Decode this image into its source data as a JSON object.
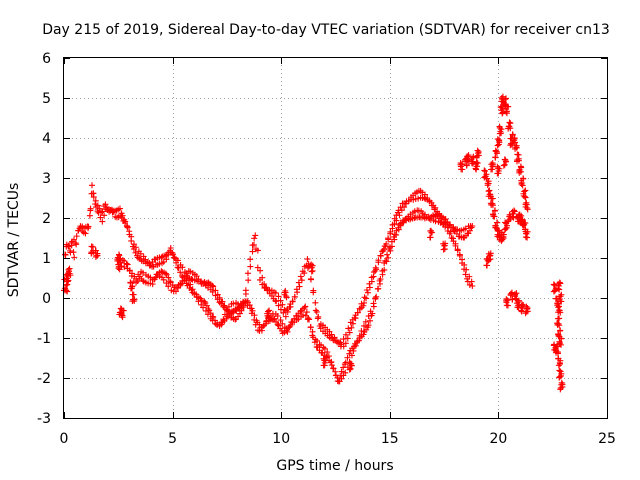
{
  "chart_data": {
    "type": "scatter",
    "title": "Day 215 of 2019, Sidereal Day-to-day VTEC variation (SDTVAR) for receiver cn13",
    "xlabel": "GPS time / hours",
    "ylabel": "SDTVAR / TECUs",
    "xlim": [
      0,
      25
    ],
    "ylim": [
      -3,
      6
    ],
    "xticks": [
      0,
      5,
      10,
      15,
      20,
      25
    ],
    "yticks": [
      -3,
      -2,
      -1,
      0,
      1,
      2,
      3,
      4,
      5,
      6
    ],
    "xtick_labels": [
      "0",
      "5",
      "10",
      "15",
      "20",
      "25"
    ],
    "ytick_labels": [
      "-3",
      "-2",
      "-1",
      "0",
      "1",
      "2",
      "3",
      "4",
      "5",
      "6"
    ],
    "grid": true,
    "marker": "+",
    "series": [
      {
        "name": "SDTVAR",
        "color": "#ff0000",
        "trace": [
          [
            0.0,
            0.1
          ],
          [
            0.05,
            1.0
          ],
          [
            0.1,
            1.3
          ],
          [
            0.2,
            1.3
          ],
          [
            0.3,
            1.2
          ],
          [
            0.4,
            1.5
          ],
          [
            0.5,
            1.1
          ],
          [
            0.6,
            1.6
          ],
          [
            0.75,
            1.8
          ],
          [
            0.9,
            1.7
          ],
          [
            1.1,
            1.7
          ],
          [
            1.2,
            2.1
          ],
          [
            1.3,
            2.75
          ],
          [
            1.4,
            2.5
          ],
          [
            1.5,
            2.3
          ],
          [
            1.6,
            2.2
          ],
          [
            1.75,
            2.0
          ],
          [
            1.9,
            2.3
          ],
          [
            2.05,
            2.2
          ],
          [
            2.2,
            2.2
          ],
          [
            2.3,
            2.1
          ],
          [
            2.45,
            2.1
          ],
          [
            2.6,
            2.15
          ],
          [
            2.7,
            2.0
          ],
          [
            2.8,
            1.9
          ],
          [
            2.9,
            1.8
          ],
          [
            3.2,
            1.3
          ],
          [
            3.4,
            1.1
          ],
          [
            3.6,
            1.0
          ],
          [
            3.8,
            0.9
          ],
          [
            4.0,
            0.8
          ],
          [
            4.2,
            0.9
          ],
          [
            4.5,
            0.95
          ],
          [
            4.7,
            1.0
          ],
          [
            4.9,
            1.2
          ],
          [
            5.1,
            1.0
          ],
          [
            5.3,
            0.8
          ],
          [
            5.5,
            0.6
          ],
          [
            5.7,
            0.4
          ],
          [
            5.9,
            0.2
          ],
          [
            6.1,
            0.05
          ],
          [
            6.3,
            -0.1
          ],
          [
            6.5,
            -0.2
          ],
          [
            6.7,
            -0.4
          ],
          [
            6.9,
            -0.55
          ],
          [
            7.1,
            -0.7
          ],
          [
            7.3,
            -0.6
          ],
          [
            7.5,
            -0.4
          ],
          [
            7.7,
            -0.25
          ],
          [
            7.9,
            -0.2
          ],
          [
            8.1,
            -0.2
          ],
          [
            8.3,
            -0.1
          ],
          [
            8.5,
            -0.15
          ],
          [
            8.7,
            -0.4
          ],
          [
            8.9,
            -0.7
          ],
          [
            9.1,
            -0.8
          ],
          [
            9.3,
            -0.6
          ],
          [
            9.5,
            -0.5
          ],
          [
            9.7,
            -0.45
          ],
          [
            9.9,
            -0.6
          ],
          [
            10.1,
            -0.8
          ],
          [
            10.3,
            -0.8
          ],
          [
            10.5,
            -0.6
          ],
          [
            10.7,
            -0.5
          ],
          [
            10.9,
            -0.4
          ],
          [
            11.1,
            -0.3
          ],
          [
            11.3,
            -0.6
          ],
          [
            11.5,
            -1.0
          ],
          [
            11.7,
            -1.2
          ],
          [
            11.9,
            -1.3
          ],
          [
            12.1,
            -1.4
          ],
          [
            12.3,
            -1.6
          ],
          [
            12.5,
            -1.9
          ],
          [
            12.65,
            -2.1
          ],
          [
            12.8,
            -1.9
          ],
          [
            13.0,
            -1.7
          ],
          [
            13.2,
            -1.4
          ],
          [
            13.4,
            -1.2
          ],
          [
            13.6,
            -1.0
          ],
          [
            13.8,
            -0.8
          ],
          [
            14.0,
            -0.6
          ],
          [
            14.2,
            -0.3
          ],
          [
            14.4,
            0.1
          ],
          [
            14.6,
            0.5
          ],
          [
            14.8,
            0.9
          ],
          [
            15.0,
            1.2
          ],
          [
            15.2,
            1.5
          ],
          [
            15.4,
            1.75
          ],
          [
            15.6,
            1.9
          ],
          [
            15.8,
            2.0
          ],
          [
            16.0,
            2.05
          ],
          [
            16.2,
            2.1
          ],
          [
            16.4,
            2.1
          ],
          [
            16.6,
            2.05
          ],
          [
            16.8,
            2.0
          ],
          [
            17.0,
            2.0
          ],
          [
            17.2,
            2.0
          ],
          [
            17.4,
            1.95
          ],
          [
            17.6,
            1.9
          ],
          [
            17.8,
            1.8
          ],
          [
            18.0,
            1.7
          ],
          [
            18.2,
            1.6
          ],
          [
            18.4,
            1.6
          ],
          [
            18.6,
            1.7
          ],
          [
            18.8,
            1.8
          ]
        ],
        "trace2": [
          [
            2.6,
            0.9
          ],
          [
            2.75,
            0.85
          ],
          [
            2.9,
            0.8
          ],
          [
            3.3,
            0.4
          ],
          [
            3.5,
            0.6
          ],
          [
            3.7,
            0.5
          ],
          [
            3.9,
            0.45
          ],
          [
            4.1,
            0.4
          ],
          [
            4.3,
            0.6
          ],
          [
            4.5,
            0.6
          ],
          [
            4.7,
            0.5
          ],
          [
            4.9,
            0.3
          ],
          [
            5.1,
            0.2
          ],
          [
            5.3,
            0.3
          ],
          [
            5.5,
            0.45
          ],
          [
            5.7,
            0.6
          ],
          [
            5.9,
            0.55
          ],
          [
            6.1,
            0.5
          ],
          [
            6.3,
            0.4
          ],
          [
            6.5,
            0.35
          ],
          [
            6.7,
            0.3
          ],
          [
            6.9,
            0.2
          ],
          [
            7.1,
            0.0
          ],
          [
            7.3,
            -0.15
          ],
          [
            7.5,
            -0.3
          ],
          [
            7.7,
            -0.45
          ],
          [
            7.9,
            -0.45
          ],
          [
            8.1,
            -0.3
          ],
          [
            8.3,
            -0.15
          ],
          [
            8.6,
            1.0
          ],
          [
            8.7,
            1.3
          ],
          [
            8.8,
            1.5
          ],
          [
            8.9,
            1.1
          ],
          [
            9.0,
            0.6
          ],
          [
            9.2,
            0.3
          ],
          [
            9.4,
            0.2
          ],
          [
            9.6,
            0.1
          ],
          [
            9.8,
            0.0
          ],
          [
            10.0,
            -0.2
          ],
          [
            10.2,
            -0.4
          ],
          [
            10.4,
            -0.2
          ],
          [
            10.6,
            0.0
          ],
          [
            11.2,
            0.9
          ],
          [
            11.3,
            0.7
          ],
          [
            11.4,
            0.4
          ],
          [
            11.5,
            0.1
          ],
          [
            11.6,
            -0.3
          ],
          [
            11.8,
            -0.7
          ],
          [
            12.0,
            -0.8
          ],
          [
            12.2,
            -0.9
          ],
          [
            12.4,
            -1.0
          ],
          [
            12.6,
            -1.1
          ],
          [
            12.8,
            -1.2
          ],
          [
            13.0,
            -1.0
          ],
          [
            13.2,
            -0.7
          ],
          [
            13.4,
            -0.5
          ],
          [
            13.6,
            -0.3
          ],
          [
            13.8,
            -0.1
          ],
          [
            14.0,
            0.2
          ],
          [
            14.2,
            0.5
          ],
          [
            14.4,
            0.8
          ],
          [
            14.6,
            1.1
          ],
          [
            14.8,
            1.3
          ],
          [
            15.0,
            1.6
          ],
          [
            15.2,
            1.9
          ],
          [
            15.4,
            2.1
          ],
          [
            15.6,
            2.3
          ],
          [
            15.8,
            2.4
          ],
          [
            16.0,
            2.5
          ],
          [
            16.2,
            2.55
          ],
          [
            16.4,
            2.6
          ],
          [
            16.6,
            2.55
          ],
          [
            16.8,
            2.45
          ],
          [
            17.0,
            2.3
          ],
          [
            17.2,
            2.1
          ],
          [
            17.4,
            1.95
          ],
          [
            17.6,
            1.8
          ],
          [
            17.8,
            1.6
          ],
          [
            18.0,
            1.35
          ],
          [
            18.2,
            1.1
          ],
          [
            18.4,
            0.8
          ],
          [
            18.6,
            0.5
          ],
          [
            18.8,
            0.3
          ]
        ],
        "clusters": [
          [
            0.15,
            0.5
          ],
          [
            0.25,
            0.65
          ],
          [
            0.1,
            0.25
          ],
          [
            2.7,
            -0.4
          ],
          [
            2.6,
            -0.35
          ],
          [
            3.2,
            0.0
          ],
          [
            3.1,
            0.3
          ],
          [
            1.5,
            1.1
          ],
          [
            1.3,
            1.2
          ],
          [
            2.5,
            1.0
          ],
          [
            2.55,
            0.8
          ],
          [
            9.4,
            -0.4
          ],
          [
            10.2,
            0.1
          ],
          [
            11.4,
            0.75
          ],
          [
            12.0,
            -1.6
          ],
          [
            13.2,
            -1.7
          ],
          [
            16.9,
            1.6
          ],
          [
            17.5,
            1.3
          ],
          [
            18.3,
            3.3
          ],
          [
            18.5,
            3.4
          ],
          [
            18.6,
            3.5
          ],
          [
            18.8,
            3.45
          ],
          [
            19.0,
            3.3
          ],
          [
            19.05,
            3.6
          ],
          [
            19.4,
            3.1
          ],
          [
            19.5,
            2.9
          ],
          [
            19.6,
            2.6
          ],
          [
            19.7,
            2.4
          ],
          [
            19.8,
            2.1
          ],
          [
            19.9,
            1.8
          ],
          [
            20.0,
            1.6
          ],
          [
            20.1,
            1.5
          ],
          [
            20.2,
            1.55
          ],
          [
            20.35,
            1.8
          ],
          [
            20.5,
            2.0
          ],
          [
            20.7,
            2.1
          ],
          [
            20.9,
            2.0
          ],
          [
            21.1,
            1.9
          ],
          [
            21.2,
            1.8
          ],
          [
            21.3,
            1.6
          ],
          [
            19.7,
            3.3
          ],
          [
            19.9,
            3.6
          ],
          [
            20.0,
            3.9
          ],
          [
            20.1,
            4.2
          ],
          [
            20.15,
            4.7
          ],
          [
            20.2,
            4.95
          ],
          [
            20.3,
            4.9
          ],
          [
            20.4,
            4.7
          ],
          [
            20.5,
            4.3
          ],
          [
            20.6,
            3.9
          ],
          [
            20.7,
            4.0
          ],
          [
            20.8,
            3.8
          ],
          [
            20.9,
            3.5
          ],
          [
            21.0,
            3.2
          ],
          [
            21.1,
            2.9
          ],
          [
            21.2,
            2.6
          ],
          [
            21.3,
            2.3
          ],
          [
            21.0,
            2.0
          ],
          [
            20.0,
            3.2
          ],
          [
            20.3,
            3.4
          ],
          [
            19.5,
            0.9
          ],
          [
            19.6,
            1.05
          ],
          [
            20.4,
            -0.1
          ],
          [
            20.6,
            0.05
          ],
          [
            20.8,
            0.05
          ],
          [
            20.9,
            -0.15
          ],
          [
            21.1,
            -0.25
          ],
          [
            21.3,
            -0.3
          ],
          [
            22.6,
            0.25
          ],
          [
            22.7,
            -0.1
          ],
          [
            22.8,
            -0.3
          ],
          [
            22.75,
            -0.6
          ],
          [
            22.8,
            -0.9
          ],
          [
            22.85,
            -1.1
          ],
          [
            22.7,
            -1.3
          ],
          [
            22.6,
            -1.25
          ],
          [
            22.8,
            -1.6
          ],
          [
            22.85,
            -1.9
          ],
          [
            22.9,
            -2.2
          ],
          [
            22.8,
            0.3
          ],
          [
            22.85,
            0.0
          ]
        ]
      }
    ]
  }
}
